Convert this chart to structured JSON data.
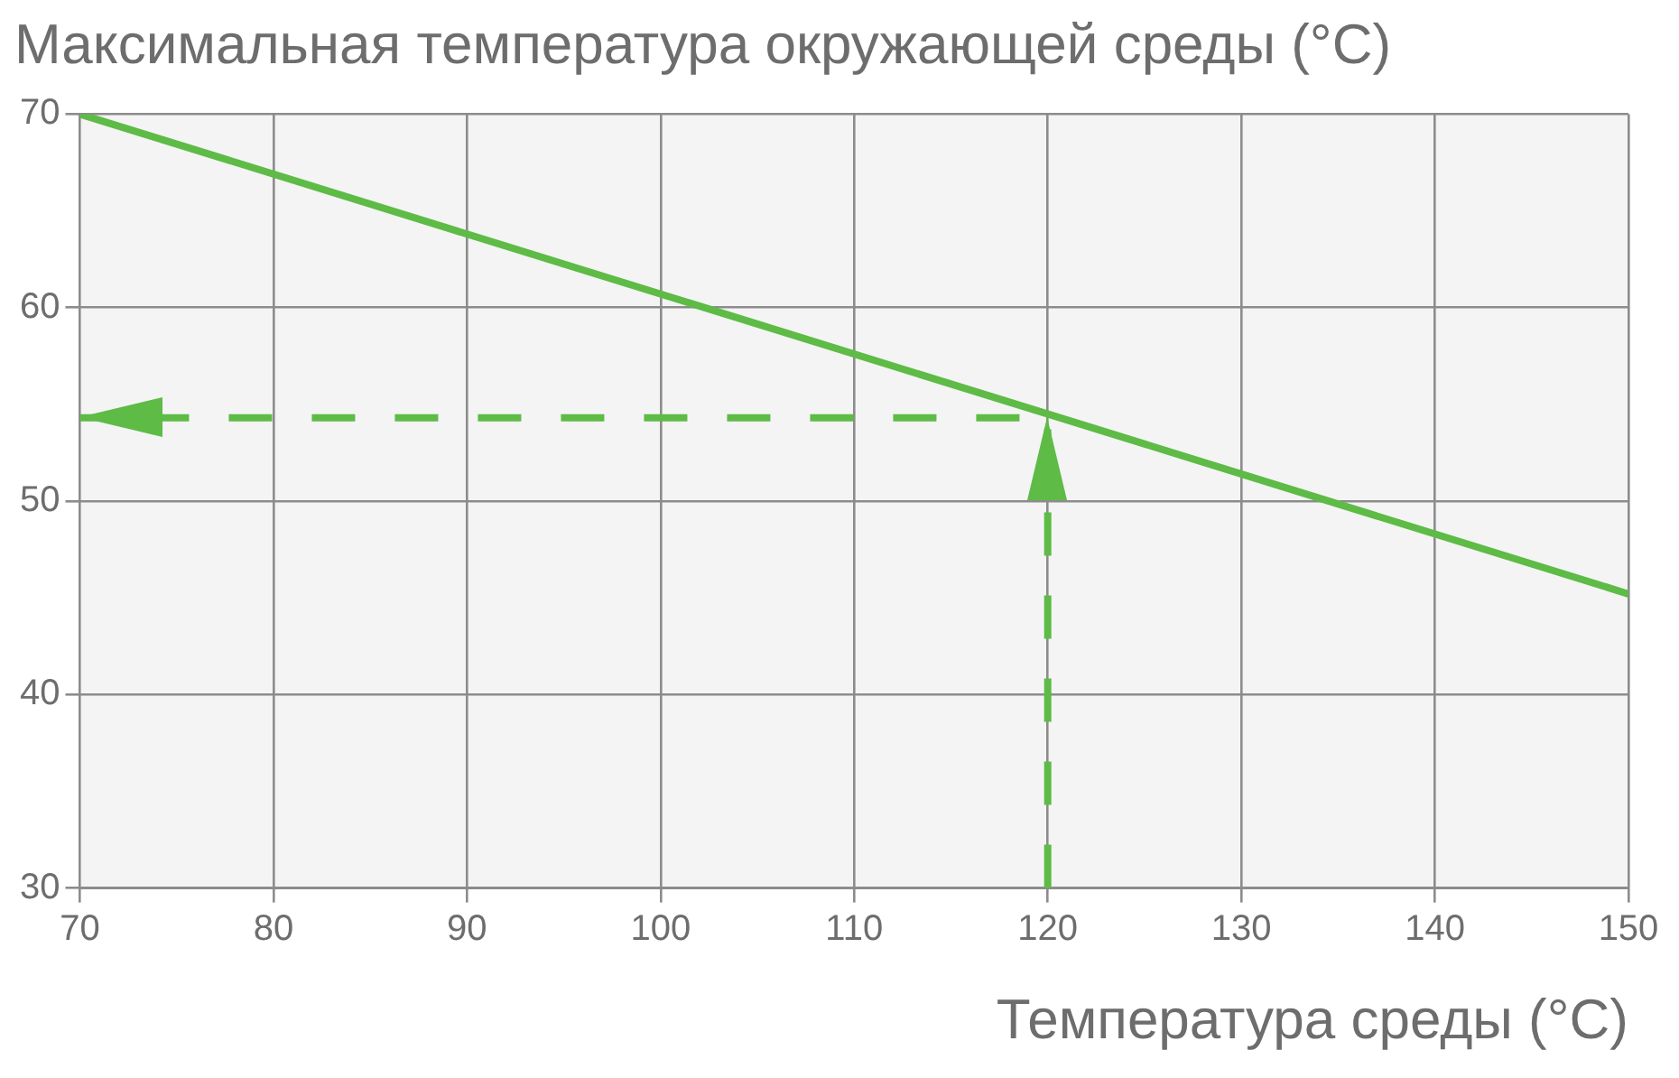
{
  "chart_data": {
    "type": "line",
    "title": "Максимальная температура окружающей среды (°C)",
    "xlabel": "Температура среды (°C)",
    "xlim": [
      70,
      150
    ],
    "xticks": [
      70,
      80,
      90,
      100,
      110,
      120,
      130,
      140,
      150
    ],
    "ylim": [
      30,
      70
    ],
    "yticks": [
      30,
      40,
      50,
      60,
      70
    ],
    "grid": true,
    "legend": false,
    "marker": "none",
    "series": [
      {
        "color": "#5dbb46",
        "x": [
          70,
          150
        ],
        "values": [
          70,
          45.2
        ],
        "line_style": "solid"
      },
      {
        "color": "#5dbb46",
        "x": [
          120,
          120,
          70
        ],
        "values": [
          30,
          54.3,
          54.3
        ],
        "line_style": "dashed"
      }
    ]
  }
}
